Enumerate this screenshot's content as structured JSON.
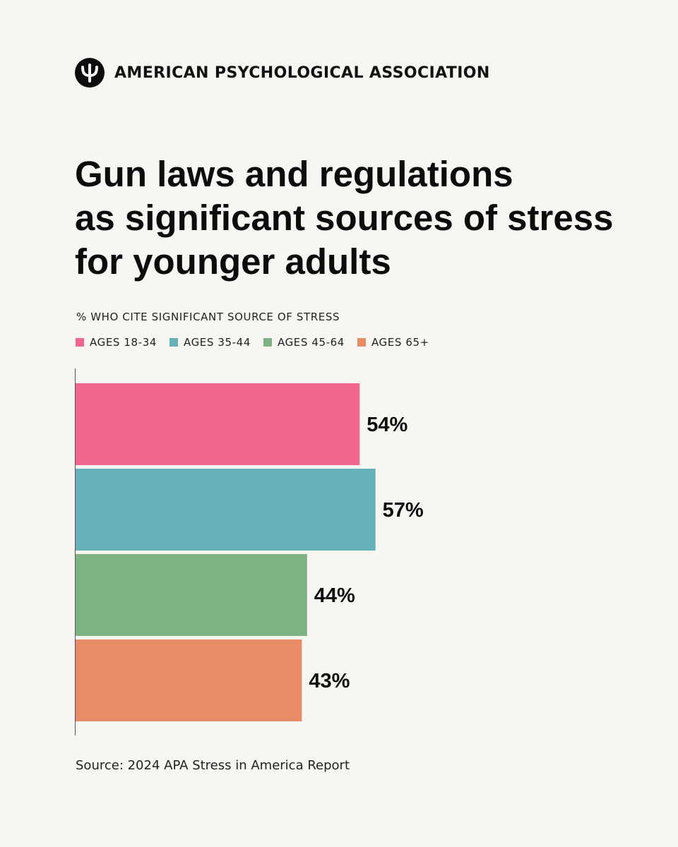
{
  "header": {
    "org_name": "AMERICAN PSYCHOLOGICAL ASSOCIATION",
    "logo_icon": "psi-icon"
  },
  "colors": {
    "background": "#f7f6f2",
    "ages_18_34": "#f0668c",
    "ages_35_44": "#66b1b8",
    "ages_45_64": "#7db282",
    "ages_65_plus": "#e88b67",
    "text": "#0c0c0c"
  },
  "chart_data": {
    "type": "bar",
    "orientation": "horizontal",
    "title": [
      "Gun laws and regulations",
      "as significant sources of stress",
      "for younger adults"
    ],
    "subtitle": "% WHO CITE SIGNIFICANT SOURCE OF STRESS",
    "categories": [
      "AGES 18-34",
      "AGES 35-44",
      "AGES 45-64",
      "AGES 65+"
    ],
    "values": [
      54,
      57,
      44,
      43
    ],
    "value_labels": [
      "54%",
      "57%",
      "44%",
      "43%"
    ],
    "series_colors": [
      "#f0668c",
      "#66b1b8",
      "#7db282",
      "#e88b67"
    ],
    "xlim": [
      0,
      100
    ],
    "grid": false,
    "legend_placement": "top-left"
  },
  "source": "Source: 2024 APA Stress in America Report"
}
